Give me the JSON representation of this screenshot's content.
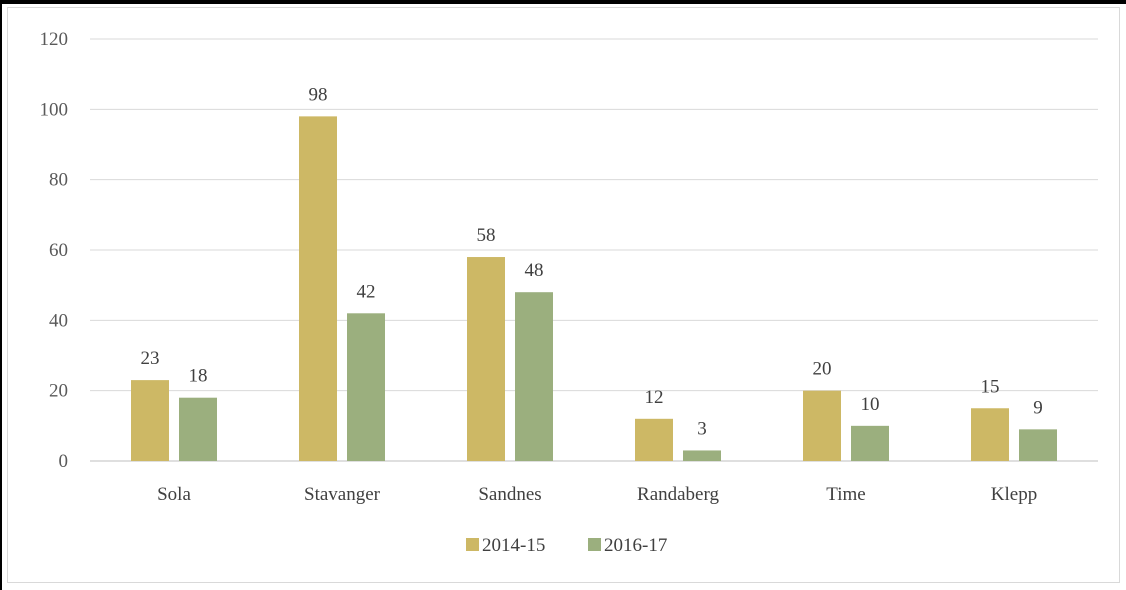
{
  "chart_data": {
    "type": "bar",
    "categories": [
      "Sola",
      "Stavanger",
      "Sandnes",
      "Randaberg",
      "Time",
      "Klepp"
    ],
    "series": [
      {
        "name": "2014-15",
        "values": [
          23,
          98,
          58,
          12,
          20,
          15
        ],
        "color": "#CDB865"
      },
      {
        "name": "2016-17",
        "values": [
          18,
          42,
          48,
          3,
          10,
          9
        ],
        "color": "#9BAF7E"
      }
    ],
    "ylim": [
      0,
      120
    ],
    "yticks": [
      "0",
      "20",
      "40",
      "60",
      "80",
      "100",
      "120"
    ],
    "grid": true,
    "legend_position": "bottom",
    "data_labels": true,
    "colors": {
      "gridline": "#d9d9d9",
      "axis": "#bfbfbf"
    }
  }
}
